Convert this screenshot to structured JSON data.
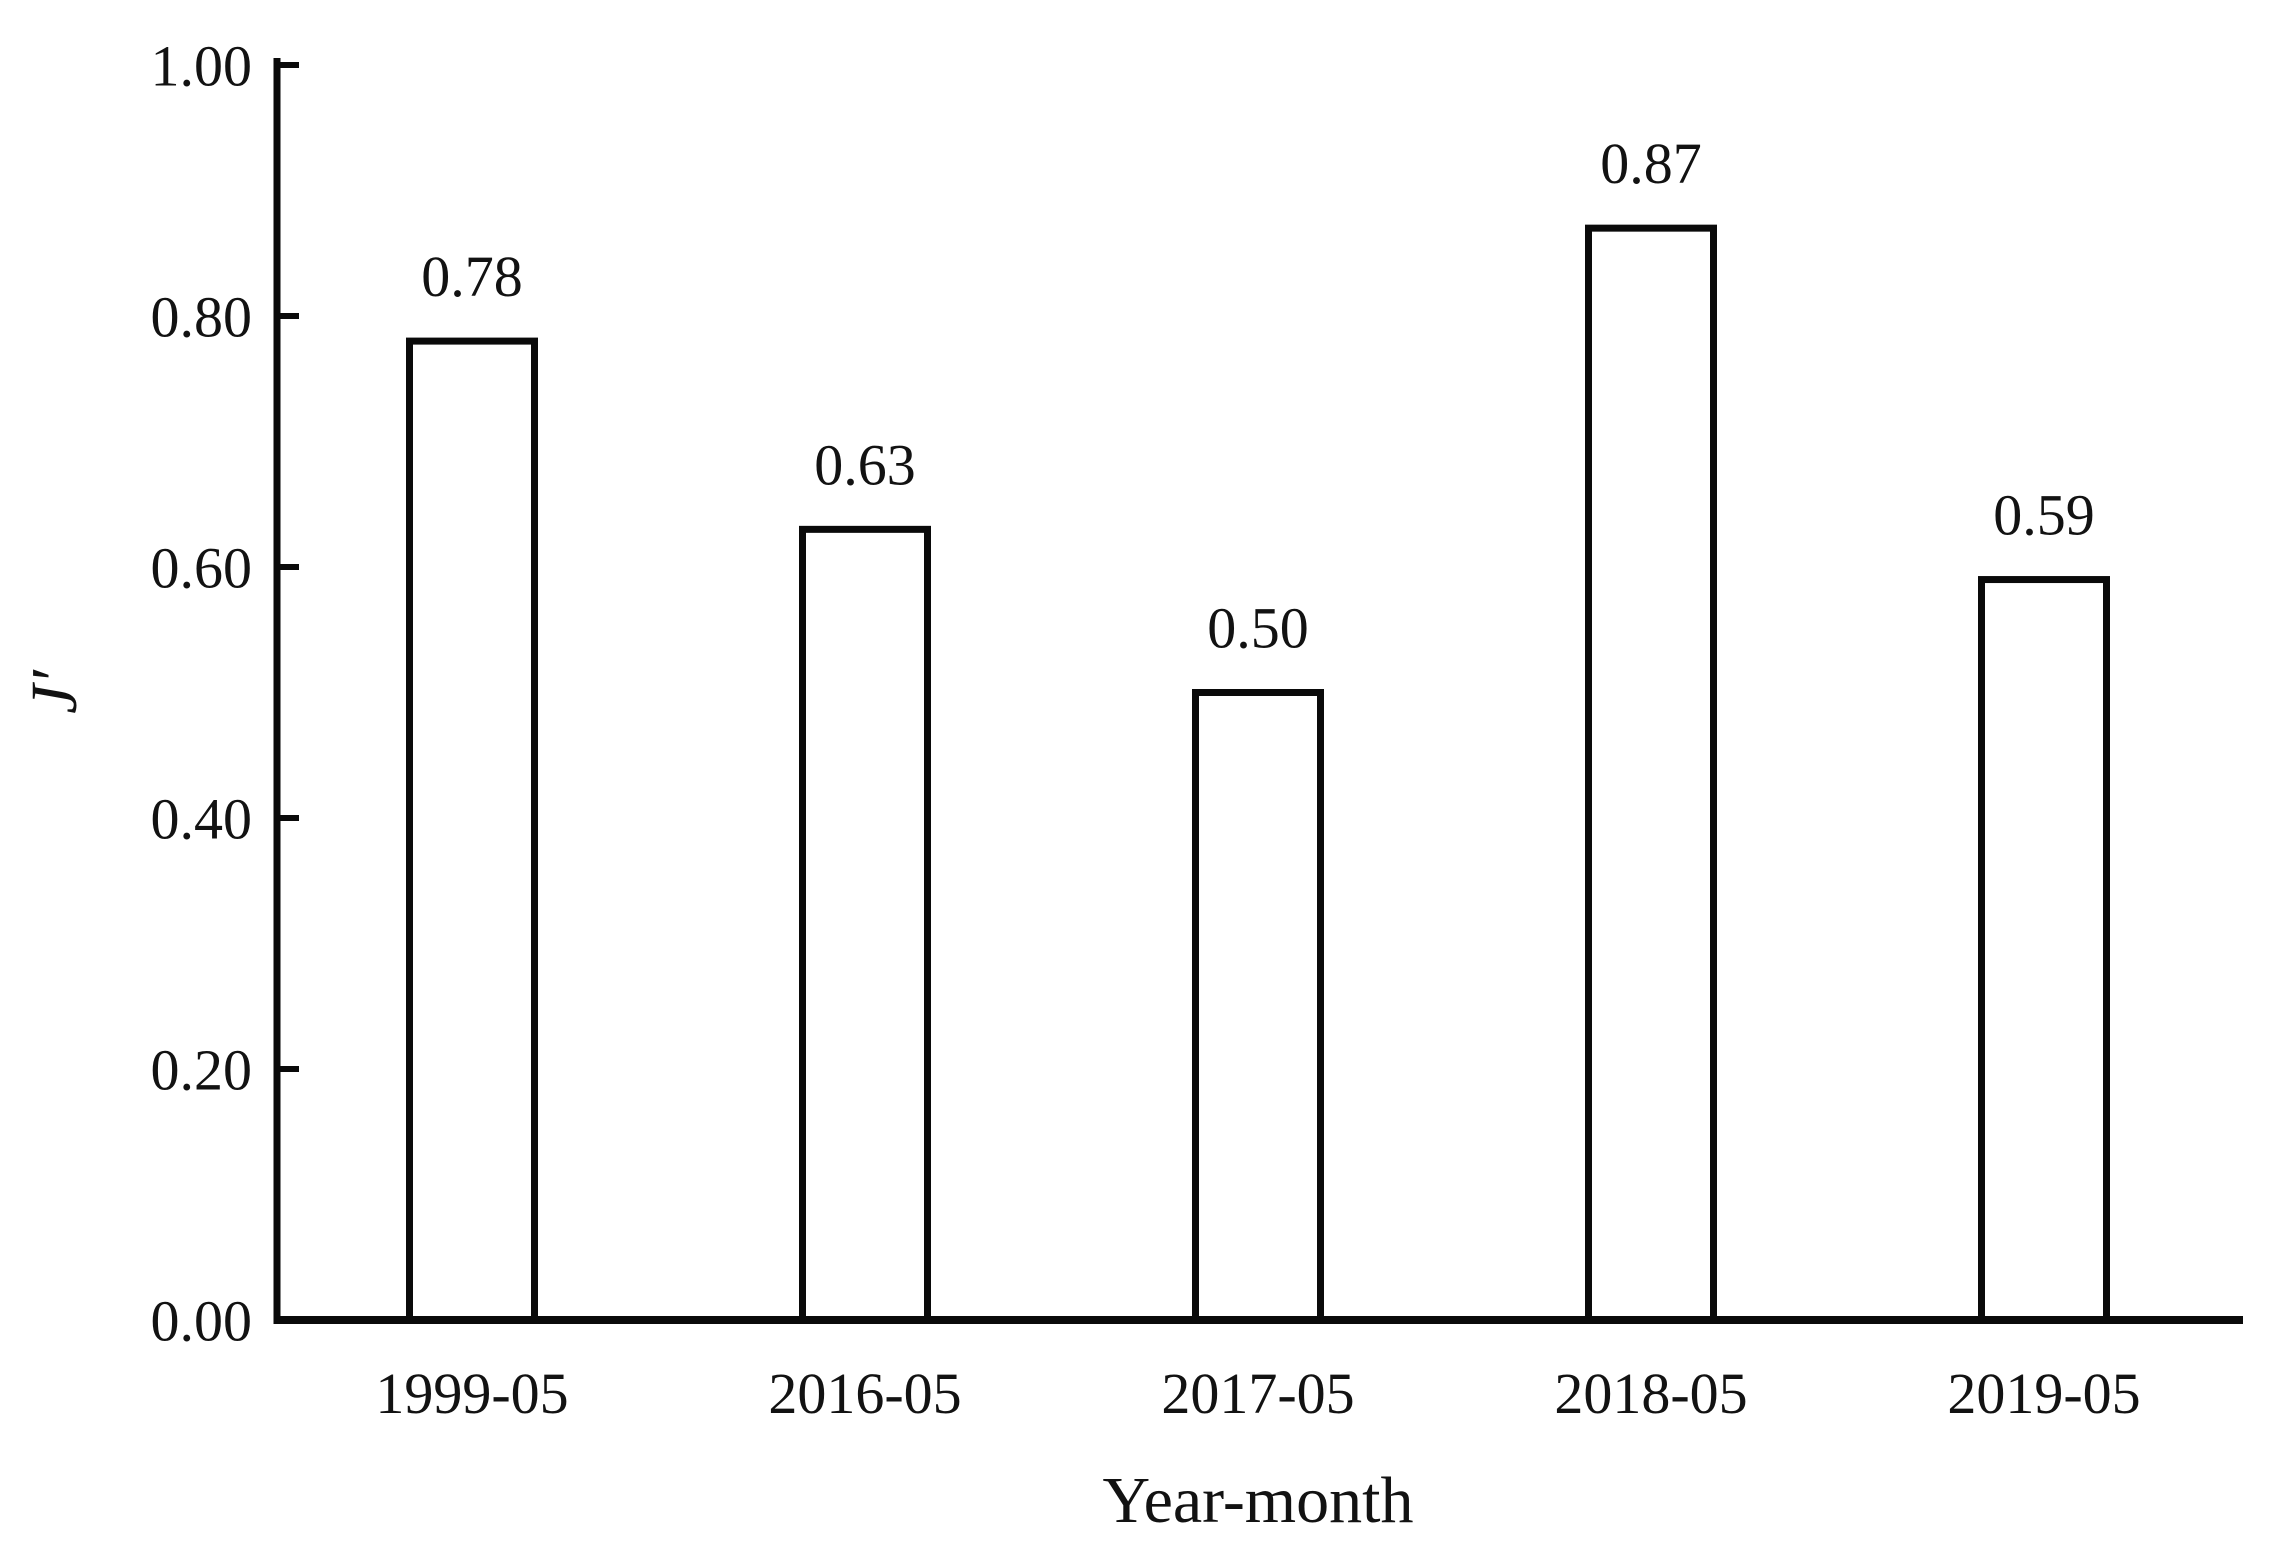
{
  "chart_data": {
    "type": "bar",
    "title": "",
    "categories": [
      "1999-05",
      "2016-05",
      "2017-05",
      "2018-05",
      "2019-05"
    ],
    "values": [
      0.78,
      0.63,
      0.5,
      0.87,
      0.59
    ],
    "bar_value_labels": [
      "0.78",
      "0.63",
      "0.50",
      "0.87",
      "0.59"
    ],
    "xlabel": "Year-month",
    "ylabel": "J′",
    "ylim": [
      0,
      1.0
    ],
    "yticks": [
      0,
      0.2,
      0.4,
      0.6,
      0.8,
      1.0
    ],
    "ytick_labels": [
      "0.00",
      "0.20",
      "0.40",
      "0.60",
      "0.80",
      "1.00"
    ],
    "grid": false,
    "legend": false,
    "bar_fill": "#ffffff",
    "bar_border_color": "#0a0a0a",
    "axis_color": "#0a0a0a",
    "text_color": "#121212"
  }
}
